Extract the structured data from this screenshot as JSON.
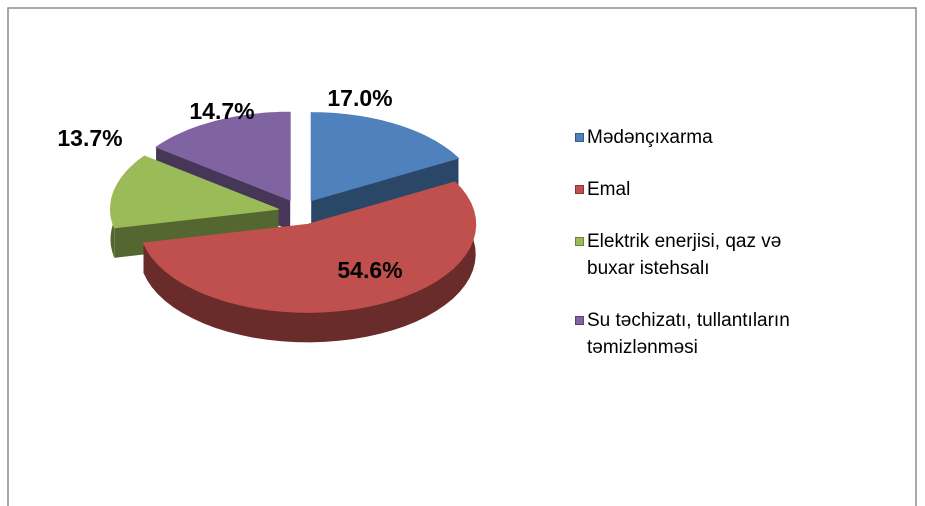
{
  "chart_data": {
    "type": "pie3d",
    "categories": [
      "Mədənçıxarma",
      "Emal",
      "Elektrik enerjisi, qaz və buxar istehsalı",
      "Su təchizatı, tullantıların təmizlənməsi"
    ],
    "values": [
      17.0,
      54.6,
      13.7,
      14.7
    ],
    "value_labels": [
      "17.0%",
      "54.6%",
      "13.7%",
      "14.7%"
    ],
    "colors": [
      "#4f81bd",
      "#c0504d",
      "#9bbb59",
      "#8064a2"
    ],
    "legend": "right"
  }
}
